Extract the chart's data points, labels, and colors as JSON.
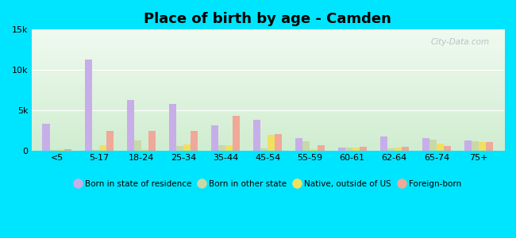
{
  "title": "Place of birth by age - Camden",
  "title_fontsize": 13,
  "categories": [
    "<5",
    "5-17",
    "18-24",
    "25-34",
    "35-44",
    "45-54",
    "55-59",
    "60-61",
    "62-64",
    "65-74",
    "75+"
  ],
  "series": {
    "Born in state of residence": [
      3300,
      11300,
      6300,
      5800,
      3100,
      3800,
      1500,
      400,
      1700,
      1500,
      1200
    ],
    "Born in other state": [
      100,
      100,
      1200,
      600,
      700,
      300,
      1100,
      400,
      300,
      1300,
      1100
    ],
    "Native, outside of US": [
      200,
      700,
      200,
      800,
      700,
      1900,
      200,
      400,
      400,
      900,
      1000
    ],
    "Foreign-born": [
      200,
      2400,
      2400,
      2400,
      4300,
      2000,
      700,
      500,
      500,
      600,
      1000
    ]
  },
  "colors": {
    "Born in state of residence": "#c8aee8",
    "Born in other state": "#c8d8a8",
    "Native, outside of US": "#f0e060",
    "Foreign-born": "#f0a898"
  },
  "ylim": [
    0,
    15000
  ],
  "yticks": [
    0,
    5000,
    10000,
    15000
  ],
  "ytick_labels": [
    "0",
    "5k",
    "10k",
    "15k"
  ],
  "bg_bottom": "#d0edd0",
  "bg_top": "#f0faf0",
  "outer_bg": "#00e5ff",
  "watermark": "City-Data.com",
  "bar_width": 0.17
}
